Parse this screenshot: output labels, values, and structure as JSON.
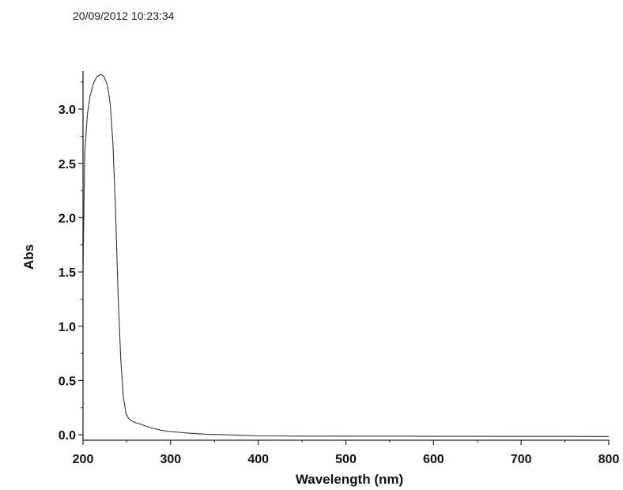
{
  "timestamp": "20/09/2012 10:23:34",
  "chart_data": {
    "type": "line",
    "xlabel": "Wavelength (nm)",
    "ylabel": "Abs",
    "xlim": [
      200,
      800
    ],
    "ylim": [
      -0.05,
      3.35
    ],
    "x_ticks": [
      200,
      300,
      400,
      500,
      600,
      700,
      800
    ],
    "x_tick_labels": [
      "200",
      "300",
      "400",
      "500",
      "600",
      "700",
      "800"
    ],
    "y_ticks": [
      0.0,
      0.5,
      1.0,
      1.5,
      2.0,
      2.5,
      3.0
    ],
    "y_tick_labels": [
      "0.0",
      "0.5",
      "1.0",
      "1.5",
      "2.0",
      "2.5",
      "3.0"
    ],
    "grid": false,
    "series": [
      {
        "color": "#333333",
        "x": [
          200,
          202,
          205,
          208,
          212,
          216,
          220,
          224,
          228,
          231,
          234,
          237,
          240,
          243,
          246,
          249,
          252,
          255,
          260,
          265,
          270,
          280,
          290,
          300,
          320,
          340,
          360,
          380,
          400,
          450,
          500,
          550,
          600,
          650,
          700,
          750,
          800
        ],
        "y": [
          1.5,
          2.6,
          2.95,
          3.12,
          3.24,
          3.3,
          3.32,
          3.3,
          3.22,
          3.05,
          2.7,
          2.1,
          1.3,
          0.7,
          0.35,
          0.2,
          0.15,
          0.13,
          0.11,
          0.1,
          0.085,
          0.06,
          0.04,
          0.03,
          0.015,
          0.005,
          0.0,
          -0.005,
          -0.01,
          -0.012,
          -0.013,
          -0.013,
          -0.014,
          -0.014,
          -0.015,
          -0.015,
          -0.016
        ]
      }
    ]
  }
}
